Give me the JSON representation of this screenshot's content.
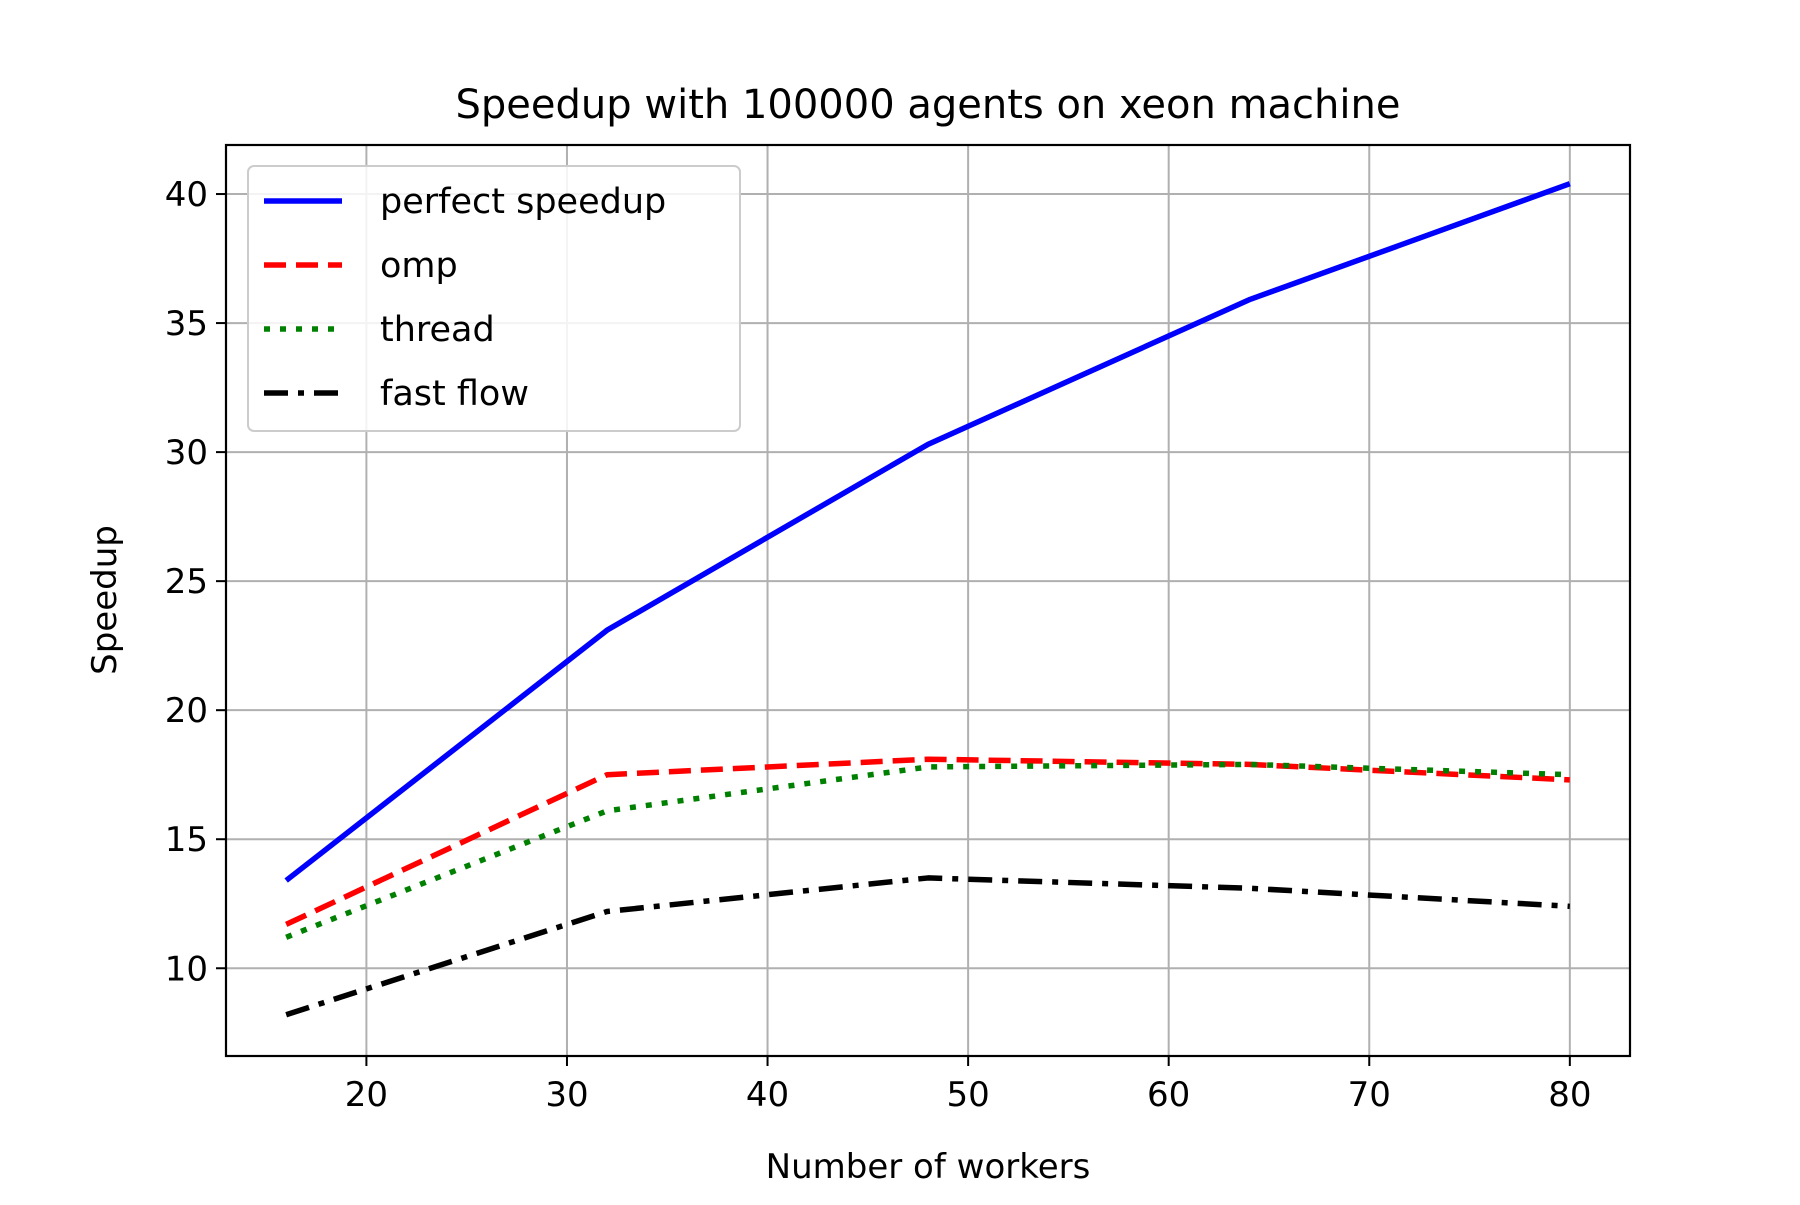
{
  "chart_data": {
    "type": "line",
    "title": "Speedup with 100000 agents on xeon machine",
    "xlabel": "Number of workers",
    "ylabel": "Speedup",
    "xlim": [
      13,
      83
    ],
    "ylim": [
      6.6,
      41.9
    ],
    "xticks": [
      20,
      30,
      40,
      50,
      60,
      70,
      80
    ],
    "yticks": [
      10,
      15,
      20,
      25,
      30,
      35,
      40
    ],
    "grid": true,
    "legend_position": "top-left",
    "x": [
      16,
      32,
      48,
      64,
      80
    ],
    "series": [
      {
        "name": "perfect speedup",
        "values": [
          13.4,
          23.1,
          30.3,
          35.9,
          40.4
        ],
        "color": "#0000ff",
        "style": "solid"
      },
      {
        "name": "omp",
        "values": [
          11.7,
          17.5,
          18.1,
          17.9,
          17.3
        ],
        "color": "#ff0000",
        "style": "dashed"
      },
      {
        "name": "thread",
        "values": [
          11.2,
          16.1,
          17.8,
          17.9,
          17.5
        ],
        "color": "#008000",
        "style": "dotted"
      },
      {
        "name": "fast flow",
        "values": [
          8.2,
          12.2,
          13.5,
          13.1,
          12.4
        ],
        "color": "#000000",
        "style": "dashdot"
      }
    ]
  }
}
